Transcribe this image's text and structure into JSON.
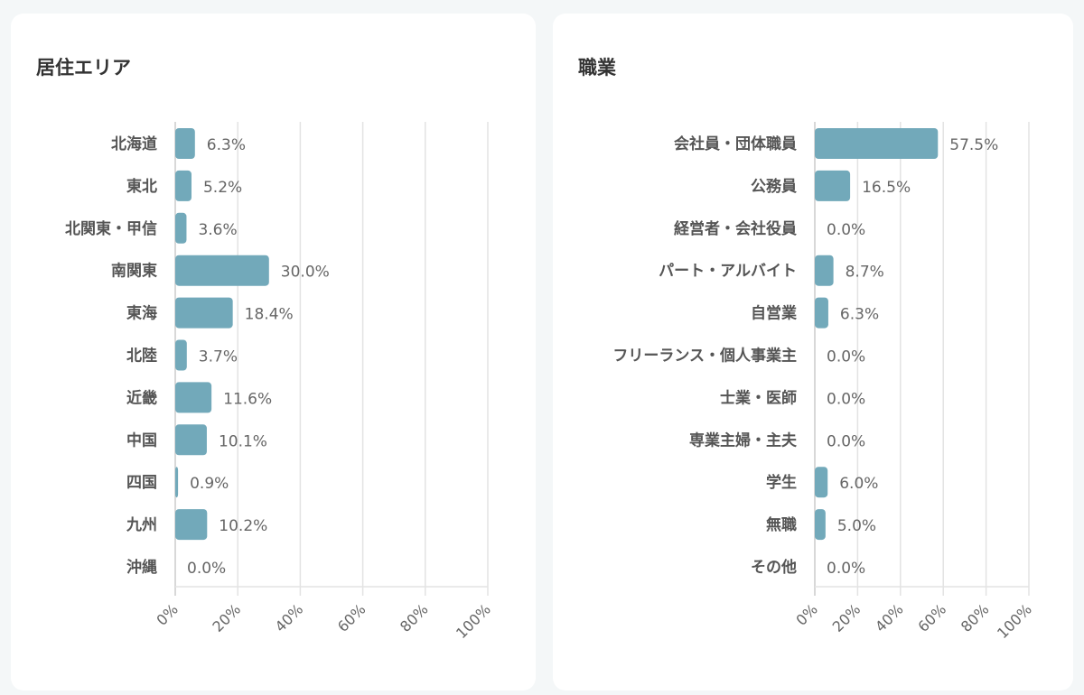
{
  "chart_data": [
    {
      "type": "bar",
      "orientation": "horizontal",
      "title": "居住エリア",
      "categories": [
        "北海道",
        "東北",
        "北関東・甲信",
        "南関東",
        "東海",
        "北陸",
        "近畿",
        "中国",
        "四国",
        "九州",
        "沖縄"
      ],
      "values": [
        6.3,
        5.2,
        3.6,
        30.0,
        18.4,
        3.7,
        11.6,
        10.1,
        0.9,
        10.2,
        0.0
      ],
      "value_labels": [
        "6.3%",
        "5.2%",
        "3.6%",
        "30.0%",
        "18.4%",
        "3.7%",
        "11.6%",
        "10.1%",
        "0.9%",
        "10.2%",
        "0.0%"
      ],
      "xlim": [
        0,
        100
      ],
      "xticks": [
        "0%",
        "20%",
        "40%",
        "60%",
        "80%",
        "100%"
      ],
      "grid": true,
      "bar_color": "#72a9ba"
    },
    {
      "type": "bar",
      "orientation": "horizontal",
      "title": "職業",
      "categories": [
        "会社員・団体職員",
        "公務員",
        "経営者・会社役員",
        "パート・アルバイト",
        "自営業",
        "フリーランス・個人事業主",
        "士業・医師",
        "専業主婦・主夫",
        "学生",
        "無職",
        "その他"
      ],
      "values": [
        57.5,
        16.5,
        0.0,
        8.7,
        6.3,
        0.0,
        0.0,
        0.0,
        6.0,
        5.0,
        0.0
      ],
      "value_labels": [
        "57.5%",
        "16.5%",
        "0.0%",
        "8.7%",
        "6.3%",
        "0.0%",
        "0.0%",
        "0.0%",
        "6.0%",
        "5.0%",
        "0.0%"
      ],
      "xlim": [
        0,
        100
      ],
      "xticks": [
        "0%",
        "20%",
        "40%",
        "60%",
        "80%",
        "100%"
      ],
      "grid": true,
      "bar_color": "#72a9ba"
    }
  ]
}
